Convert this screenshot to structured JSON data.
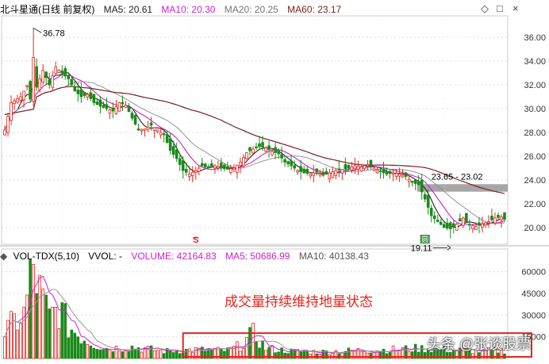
{
  "header": {
    "title": "北斗星通(日线 前复权)",
    "ma5": "MA5: 20.61",
    "ma10": "MA10: 20.30",
    "ma20": "MA20: 20.25",
    "ma60": "MA60: 23.17"
  },
  "window_controls": {
    "options": "◇",
    "maximize": "□",
    "close": "×"
  },
  "volume_header": {
    "title": "VOL-TDX(5,10)",
    "vvol": "VVOL: -",
    "volume": "VOLUME: 42164.83",
    "ma5": "MA5: 50686.99",
    "ma10": "MA10: 40138.43"
  },
  "annotations": {
    "high": "36.78",
    "low": "19.11",
    "gap": "23.65 - 23.02",
    "volume_note": "成交量持续维持地量状态",
    "marker_s": "S",
    "marker_box": "圆"
  },
  "watermark": "头条 @张谈股票",
  "colors": {
    "up": "#e8241e",
    "down": "#1a8a1a",
    "ma5": "#222222",
    "ma10": "#cc22cc",
    "ma20": "#8a8a8a",
    "ma60": "#7a1f1f",
    "gap_band": "#888888",
    "vol_ma5": "#cc22cc",
    "vol_ma10": "#999999"
  },
  "chart_data": [
    {
      "type": "candlestick",
      "title": "北斗星通(日线 前复权)",
      "y_ticks": [
        20.0,
        22.0,
        24.0,
        26.0,
        28.0,
        30.0,
        32.0,
        34.0,
        36.0
      ],
      "y_tick_labels": [
        "20.00",
        "22.00",
        "24.00",
        "26.00",
        "28.00",
        "30.00",
        "32.00",
        "34.00",
        "36.00"
      ],
      "ylim": [
        18.6,
        37.8
      ],
      "bars_total": 158,
      "high": 36.78,
      "low": 19.11,
      "ma": {
        "MA5": 20.61,
        "MA10": 20.3,
        "MA20": 20.25,
        "MA60": 23.17
      },
      "gap_zone": [
        23.02,
        23.65
      ],
      "close_keypoints": [
        [
          0,
          28.2
        ],
        [
          2,
          30.5
        ],
        [
          5,
          31.0
        ],
        [
          8,
          32.4
        ],
        [
          10,
          31.8
        ],
        [
          12,
          33.2
        ],
        [
          14,
          32.0
        ],
        [
          16,
          33.5
        ],
        [
          18,
          33.0
        ],
        [
          20,
          32.5
        ],
        [
          22,
          31.5
        ],
        [
          24,
          31.0
        ],
        [
          26,
          31.2
        ],
        [
          28,
          30.5
        ],
        [
          30,
          30.2
        ],
        [
          32,
          30.0
        ],
        [
          34,
          29.8
        ],
        [
          36,
          30.5
        ],
        [
          38,
          30.3
        ],
        [
          40,
          29.2
        ],
        [
          42,
          28.2
        ],
        [
          44,
          28.3
        ],
        [
          46,
          28.6
        ],
        [
          48,
          28.2
        ],
        [
          50,
          27.8
        ],
        [
          52,
          26.5
        ],
        [
          54,
          25.8
        ],
        [
          56,
          24.8
        ],
        [
          58,
          24.5
        ],
        [
          60,
          24.8
        ],
        [
          62,
          25.2
        ],
        [
          64,
          25.0
        ],
        [
          66,
          25.2
        ],
        [
          68,
          25.0
        ],
        [
          70,
          24.9
        ],
        [
          72,
          25.0
        ],
        [
          74,
          25.5
        ],
        [
          76,
          26.3
        ],
        [
          78,
          26.6
        ],
        [
          80,
          26.8
        ],
        [
          82,
          26.7
        ],
        [
          84,
          26.4
        ],
        [
          86,
          26.2
        ],
        [
          88,
          25.5
        ],
        [
          90,
          25.2
        ],
        [
          92,
          24.8
        ],
        [
          94,
          24.6
        ],
        [
          96,
          24.5
        ],
        [
          98,
          24.7
        ],
        [
          100,
          24.4
        ],
        [
          102,
          24.6
        ],
        [
          104,
          24.8
        ],
        [
          106,
          24.9
        ],
        [
          108,
          25.0
        ],
        [
          110,
          25.2
        ],
        [
          112,
          25.1
        ],
        [
          114,
          25.3
        ],
        [
          116,
          25.0
        ],
        [
          118,
          24.7
        ],
        [
          120,
          24.5
        ],
        [
          122,
          24.6
        ],
        [
          124,
          24.5
        ],
        [
          126,
          24.3
        ],
        [
          128,
          23.8
        ],
        [
          130,
          23.6
        ],
        [
          132,
          22.4
        ],
        [
          134,
          21.0
        ],
        [
          136,
          20.5
        ],
        [
          138,
          20.0
        ],
        [
          140,
          19.9
        ],
        [
          142,
          20.3
        ],
        [
          144,
          20.8
        ],
        [
          146,
          20.2
        ],
        [
          148,
          20.1
        ],
        [
          150,
          20.3
        ],
        [
          152,
          20.5
        ],
        [
          154,
          20.8
        ],
        [
          156,
          20.9
        ],
        [
          157,
          20.7
        ]
      ]
    },
    {
      "type": "bar",
      "title": "VOL-TDX(5,10)",
      "y_ticks": [
        15000,
        30000,
        45000,
        60000
      ],
      "y_tick_labels": [
        "15000",
        "30000",
        "45000",
        "60000"
      ],
      "ylim": [
        0,
        68000
      ],
      "latest": {
        "VOLUME": 42164.83,
        "MA5": 50686.99,
        "MA10": 40138.43
      },
      "volume_keypoints": [
        [
          0,
          18000
        ],
        [
          3,
          25000
        ],
        [
          6,
          30000
        ],
        [
          9,
          65000
        ],
        [
          11,
          45000
        ],
        [
          14,
          28000
        ],
        [
          17,
          35000
        ],
        [
          20,
          22000
        ],
        [
          24,
          15000
        ],
        [
          28,
          10000
        ],
        [
          32,
          7000
        ],
        [
          40,
          8000
        ],
        [
          50,
          5000
        ],
        [
          60,
          6000
        ],
        [
          70,
          5500
        ],
        [
          74,
          9000
        ],
        [
          78,
          17000
        ],
        [
          82,
          7000
        ],
        [
          90,
          5000
        ],
        [
          100,
          4500
        ],
        [
          110,
          5500
        ],
        [
          120,
          6000
        ],
        [
          130,
          7000
        ],
        [
          140,
          6000
        ],
        [
          150,
          5000
        ],
        [
          157,
          5500
        ]
      ]
    }
  ]
}
